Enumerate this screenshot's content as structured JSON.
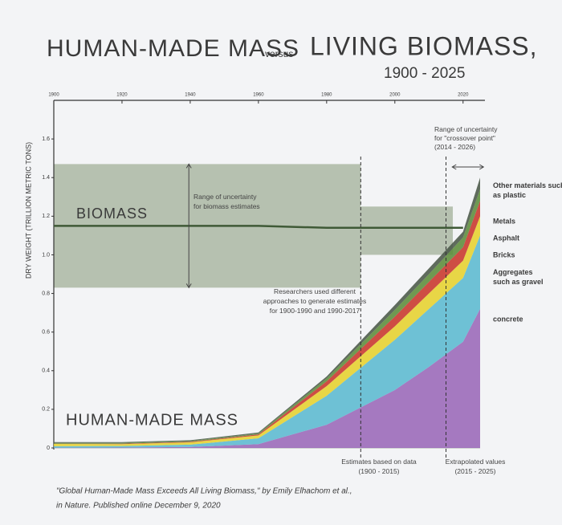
{
  "header": {
    "left": "HUMAN-MADE MASS",
    "middle": "versus",
    "right": "LIVING BIOMASS,",
    "years": "1900 - 2025"
  },
  "chart_data": {
    "type": "area",
    "y_label": "DRY WEIGHT (TRILLION METRIC TONS)",
    "x": [
      1900,
      1920,
      1940,
      1960,
      1980,
      2000,
      2010,
      2020,
      2025
    ],
    "xlim": [
      1900,
      2025
    ],
    "xticks": [
      1900,
      1920,
      1940,
      1960,
      1980,
      2000,
      2020
    ],
    "ylim": [
      0,
      1.8
    ],
    "yticks": [
      0,
      0.2,
      0.4,
      0.6,
      0.8,
      {
        "value": 1,
        "label": "1.0"
      },
      1.2,
      1.4,
      1.6
    ],
    "series": [
      {
        "name": "concrete",
        "color": "#9a68b8",
        "values": [
          0.001,
          0.002,
          0.005,
          0.02,
          0.12,
          0.3,
          0.42,
          0.55,
          0.72
        ]
      },
      {
        "name": "Aggregates such as gravel",
        "color": "#5bb9d0",
        "values": [
          0.008,
          0.008,
          0.012,
          0.03,
          0.15,
          0.26,
          0.3,
          0.33,
          0.38
        ]
      },
      {
        "name": "Bricks",
        "color": "#e6d22e",
        "values": [
          0.012,
          0.01,
          0.012,
          0.015,
          0.05,
          0.07,
          0.08,
          0.09,
          0.1
        ]
      },
      {
        "name": "Asphalt",
        "color": "#c8352b",
        "values": [
          0.001,
          0.002,
          0.003,
          0.005,
          0.025,
          0.05,
          0.06,
          0.07,
          0.08
        ]
      },
      {
        "name": "Metals",
        "color": "#5c8c3a",
        "values": [
          0.004,
          0.004,
          0.004,
          0.005,
          0.015,
          0.035,
          0.04,
          0.05,
          0.06
        ]
      },
      {
        "name": "Other materials such as plastic",
        "color": "#4a5848",
        "values": [
          0.004,
          0.004,
          0.004,
          0.005,
          0.01,
          0.025,
          0.03,
          0.03,
          0.06
        ]
      }
    ],
    "biomass": {
      "name": "BIOMASS",
      "color": "#3f5a36",
      "values": [
        1.15,
        1.15,
        1.15,
        1.15,
        1.14,
        1.14,
        1.14,
        1.14,
        null
      ]
    },
    "biomass_ranges": [
      {
        "x": [
          1900,
          1990
        ],
        "low": 0.83,
        "high": 1.47
      },
      {
        "x": [
          1990,
          2017
        ],
        "low": 1.0,
        "high": 1.25
      }
    ],
    "vlines": [
      1990,
      2015
    ],
    "crossover_range": [
      2014,
      2026
    ],
    "annotations": {
      "biomass_range": [
        "Range of uncertainty",
        "for biomass estimates"
      ],
      "methods": [
        "Researchers used different",
        "approaches to generate estimates",
        "for 1900-1990 and 1990-2017"
      ],
      "crossover": [
        "Range of uncertainty",
        "for \"crossover point\"",
        "(2014 - 2026)"
      ],
      "human_made": "HUMAN-MADE MASS",
      "data_based": [
        "Estimates based on data",
        "(1900 - 2015)"
      ],
      "extrapolated": [
        "Extrapolated values",
        "(2015 - 2025)"
      ]
    }
  },
  "source": [
    "\"Global Human-Made Mass Exceeds All Living Biomass,\" by Emily Elhachom et al.,",
    "in Nature. Published online December 9, 2020"
  ]
}
